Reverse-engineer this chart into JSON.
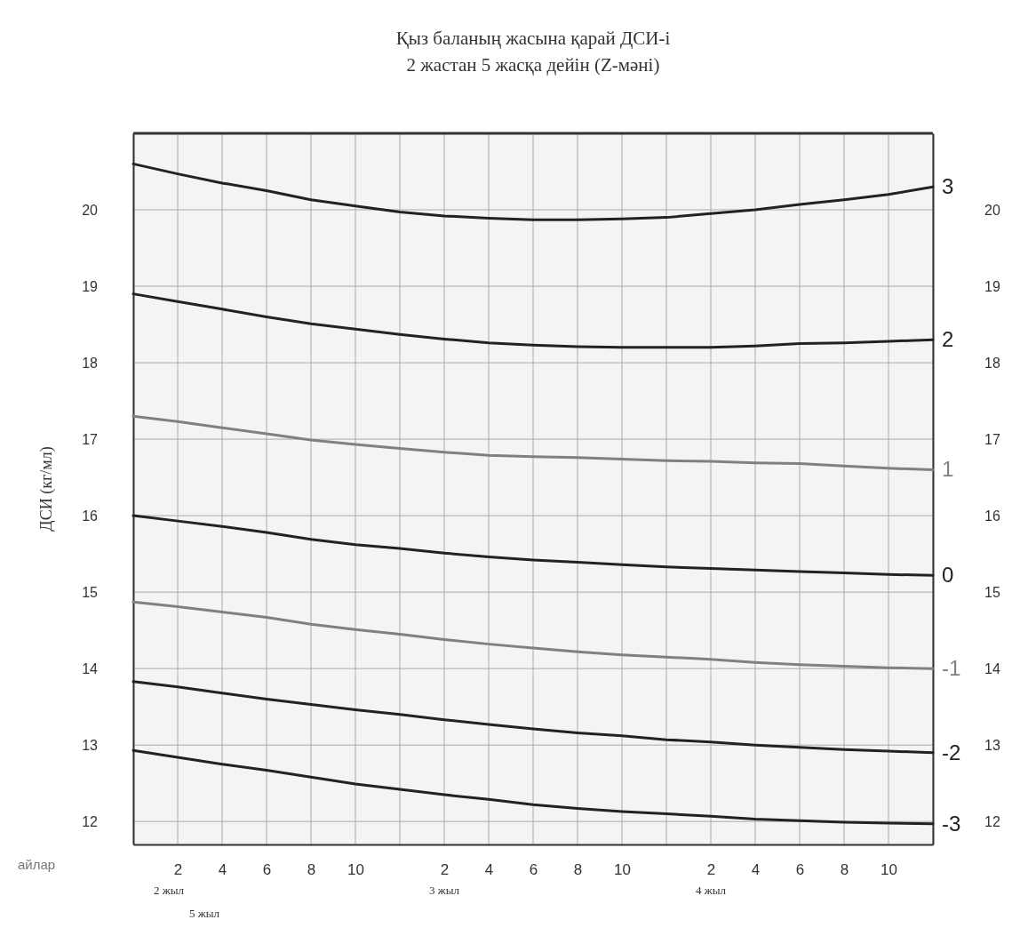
{
  "chart_data": {
    "type": "line",
    "title": "Қыз баланың жасына қарай ДСИ-і",
    "subtitle": "2 жастан 5 жасқа дейін (Z-мәні)",
    "xlabel": "айлар",
    "ylabel": "ДСИ (кг/мл)",
    "annotations": [
      "2 жыл",
      "3 жыл",
      "4 жыл",
      "5 жыл"
    ],
    "categories": [
      null,
      "2",
      "4",
      "6",
      "8",
      "10",
      null,
      "2",
      "4",
      "6",
      "8",
      "10",
      null,
      "2",
      "4",
      "6",
      "8",
      "10",
      null
    ],
    "series": [
      {
        "name": "3",
        "color": "#222222",
        "values": [
          20.6,
          20.47,
          20.35,
          20.25,
          20.13,
          20.05,
          19.97,
          19.92,
          19.89,
          19.87,
          19.87,
          19.88,
          19.9,
          19.95,
          20.0,
          20.07,
          20.13,
          20.2,
          20.3
        ]
      },
      {
        "name": "2",
        "color": "#222222",
        "values": [
          18.9,
          18.8,
          18.7,
          18.6,
          18.51,
          18.44,
          18.37,
          18.31,
          18.26,
          18.23,
          18.21,
          18.2,
          18.2,
          18.2,
          18.22,
          18.25,
          18.26,
          18.28,
          18.3
        ]
      },
      {
        "name": "1",
        "color": "#808080",
        "values": [
          17.3,
          17.23,
          17.15,
          17.07,
          16.99,
          16.93,
          16.88,
          16.83,
          16.79,
          16.77,
          16.76,
          16.74,
          16.72,
          16.71,
          16.69,
          16.68,
          16.65,
          16.62,
          16.6
        ]
      },
      {
        "name": "0",
        "color": "#222222",
        "values": [
          16.0,
          15.93,
          15.86,
          15.78,
          15.69,
          15.62,
          15.57,
          15.51,
          15.46,
          15.42,
          15.39,
          15.36,
          15.33,
          15.31,
          15.29,
          15.27,
          15.25,
          15.23,
          15.22
        ]
      },
      {
        "name": "-1",
        "color": "#808080",
        "values": [
          14.87,
          14.81,
          14.74,
          14.67,
          14.58,
          14.51,
          14.45,
          14.38,
          14.32,
          14.27,
          14.22,
          14.18,
          14.15,
          14.12,
          14.08,
          14.05,
          14.03,
          14.01,
          14.0
        ]
      },
      {
        "name": "-2",
        "color": "#222222",
        "values": [
          13.83,
          13.76,
          13.68,
          13.6,
          13.53,
          13.46,
          13.4,
          13.33,
          13.27,
          13.21,
          13.16,
          13.12,
          13.07,
          13.04,
          13.0,
          12.97,
          12.94,
          12.92,
          12.9
        ]
      },
      {
        "name": "-3",
        "color": "#222222",
        "values": [
          12.93,
          12.84,
          12.75,
          12.67,
          12.58,
          12.49,
          12.42,
          12.35,
          12.29,
          12.22,
          12.17,
          12.13,
          12.1,
          12.07,
          12.03,
          12.01,
          11.99,
          11.98,
          11.97
        ]
      }
    ],
    "ylim": [
      11.7,
      21
    ],
    "yticks": [
      12,
      13,
      14,
      15,
      16,
      17,
      18,
      19,
      20
    ],
    "y2lim": [
      11.7,
      21
    ],
    "y2ticks": [
      12,
      13,
      14,
      15,
      16,
      17,
      18,
      19,
      20
    ],
    "grid": true,
    "marker": "none",
    "line_style": "solid"
  }
}
